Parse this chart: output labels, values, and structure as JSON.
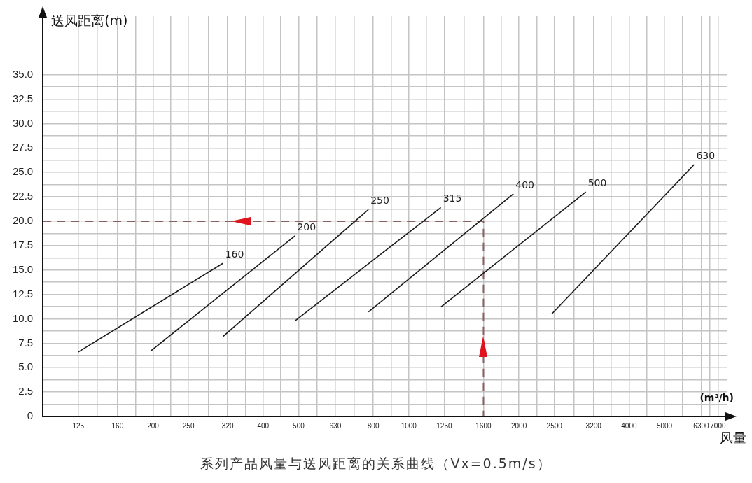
{
  "chart_data": {
    "type": "line",
    "title": "系列产品风量与送风距离的关系曲线（Vx=0.5m/s）",
    "xlabel": "风量",
    "ylabel": "送风距离(m)",
    "annotations": [
      "(m³/h)"
    ],
    "log": "x",
    "grid": true,
    "legend": false,
    "marker": "none",
    "line_style": "solid",
    "xlim": [
      100,
      7400
    ],
    "ylim": [
      0,
      41
    ],
    "xticks": [
      125,
      {
        "value": 141,
        "label": null
      },
      160,
      {
        "value": 179,
        "label": null
      },
      200,
      {
        "value": 224,
        "label": null
      },
      250,
      {
        "value": 283,
        "label": null
      },
      320,
      {
        "value": 358,
        "label": null
      },
      400,
      {
        "value": 447,
        "label": null
      },
      500,
      {
        "value": 561,
        "label": null
      },
      630,
      {
        "value": 710,
        "label": null
      },
      800,
      {
        "value": 894,
        "label": null
      },
      1000,
      {
        "value": 1118,
        "label": null
      },
      1250,
      {
        "value": 1414,
        "label": null
      },
      1600,
      {
        "value": 1789,
        "label": null
      },
      2000,
      {
        "value": 2236,
        "label": null
      },
      2500,
      {
        "value": 2828,
        "label": null
      },
      3200,
      {
        "value": 3578,
        "label": null
      },
      4000,
      {
        "value": 4472,
        "label": null
      },
      5000,
      {
        "value": 5612,
        "label": null
      },
      6300,
      {
        "value": 6641,
        "label": null
      },
      7000
    ],
    "yticks": [
      0,
      {
        "value": 1.25,
        "label": null
      },
      {
        "value": 2.5,
        "label": "2.5"
      },
      {
        "value": 3.75,
        "label": null
      },
      {
        "value": 5,
        "label": "5.0"
      },
      {
        "value": 6.25,
        "label": null
      },
      {
        "value": 7.5,
        "label": "7.5"
      },
      {
        "value": 8.75,
        "label": null
      },
      {
        "value": 10,
        "label": "10.0"
      },
      {
        "value": 11.25,
        "label": null
      },
      {
        "value": 12.5,
        "label": "12.5"
      },
      {
        "value": 13.75,
        "label": null
      },
      {
        "value": 15,
        "label": "15.0"
      },
      {
        "value": 16.25,
        "label": null
      },
      {
        "value": 17.5,
        "label": "17.5"
      },
      {
        "value": 18.75,
        "label": null
      },
      {
        "value": 20,
        "label": "20.0"
      },
      {
        "value": 21.25,
        "label": null
      },
      {
        "value": 22.5,
        "label": "22.5"
      },
      {
        "value": 23.75,
        "label": null
      },
      {
        "value": 25,
        "label": "25.0"
      },
      {
        "value": 26.25,
        "label": null
      },
      {
        "value": 27.5,
        "label": "27.5"
      },
      {
        "value": 28.75,
        "label": null
      },
      {
        "value": 30,
        "label": "30.0"
      },
      {
        "value": 31.25,
        "label": null
      },
      {
        "value": 32.5,
        "label": "32.5"
      },
      {
        "value": 33.75,
        "label": null
      },
      {
        "value": 35,
        "label": "35.0"
      }
    ],
    "series": [
      {
        "name": "160",
        "color": "#1a1a1a",
        "x": [
          125,
          311
        ],
        "values": [
          6.6,
          15.7
        ]
      },
      {
        "name": "200",
        "color": "#1a1a1a",
        "x": [
          197,
          489
        ],
        "values": [
          6.7,
          18.5
        ]
      },
      {
        "name": "250",
        "color": "#1a1a1a",
        "x": [
          311,
          776
        ],
        "values": [
          8.2,
          21.2
        ]
      },
      {
        "name": "315",
        "color": "#1a1a1a",
        "x": [
          489,
          1224
        ],
        "values": [
          9.8,
          21.4
        ]
      },
      {
        "name": "400",
        "color": "#1a1a1a",
        "x": [
          776,
          1932
        ],
        "values": [
          10.7,
          22.8
        ]
      },
      {
        "name": "500",
        "color": "#1a1a1a",
        "x": [
          1224,
          3048
        ],
        "values": [
          11.2,
          23.0
        ]
      },
      {
        "name": "630",
        "color": "#1a1a1a",
        "x": [
          2460,
          6026
        ],
        "values": [
          10.5,
          25.8
        ]
      },
      {
        "color": "#8a6060",
        "line_style": "dashed",
        "x": [
          100,
          1600,
          1600
        ],
        "values": [
          20,
          20,
          0
        ]
      }
    ]
  }
}
